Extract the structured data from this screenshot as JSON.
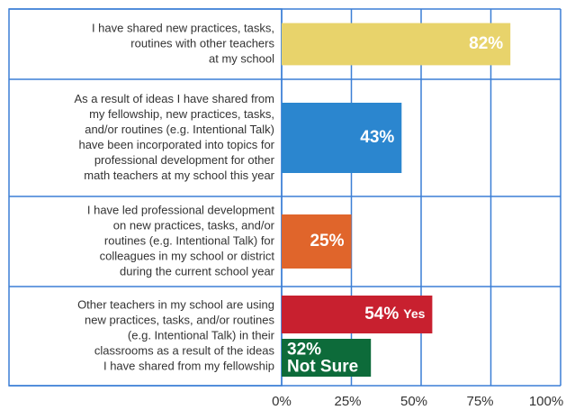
{
  "chart_data": {
    "type": "hbar",
    "categories": [
      [
        "I have shared new practices, tasks,",
        "routines with other teachers",
        "at my school"
      ],
      [
        "As a result of ideas I have shared from",
        "my fellowship, new practices, tasks,",
        "and/or routines (e.g. Intentional Talk)",
        "have been incorporated into topics for",
        "professional development for other",
        "math teachers at my school this year"
      ],
      [
        "I have led professional development",
        "on new practices, tasks, and/or",
        "routines (e.g. Intentional Talk) for",
        "colleagues in my school or district",
        "during the current school year"
      ],
      [
        "Other teachers in my school are using",
        "new practices, tasks, and/or routines",
        "(e.g. Intentional Talk) in their",
        "classrooms as a result of the ideas",
        "I have shared from my fellowship"
      ]
    ],
    "series": [
      {
        "name": "Yes",
        "values": [
          82,
          43,
          25,
          54
        ],
        "value_labels": [
          "82%",
          "43%",
          "25%",
          "54%"
        ],
        "colors": [
          "#e8d36b",
          "#2b86cf",
          "#e0652b",
          "#c8202f"
        ]
      },
      {
        "name": "Not Sure",
        "values": [
          null,
          null,
          null,
          32
        ],
        "value_labels": [
          null,
          null,
          null,
          "32%"
        ],
        "color": "#0d6b3a"
      }
    ],
    "xlim": [
      0,
      100
    ],
    "xticks": [
      {
        "value": 0,
        "label": "0%"
      },
      {
        "value": 25,
        "label": "25%"
      },
      {
        "value": 50,
        "label": "50%"
      },
      {
        "value": 75,
        "label": "75%"
      },
      {
        "value": 100,
        "label": "100%"
      }
    ],
    "grid": true
  }
}
